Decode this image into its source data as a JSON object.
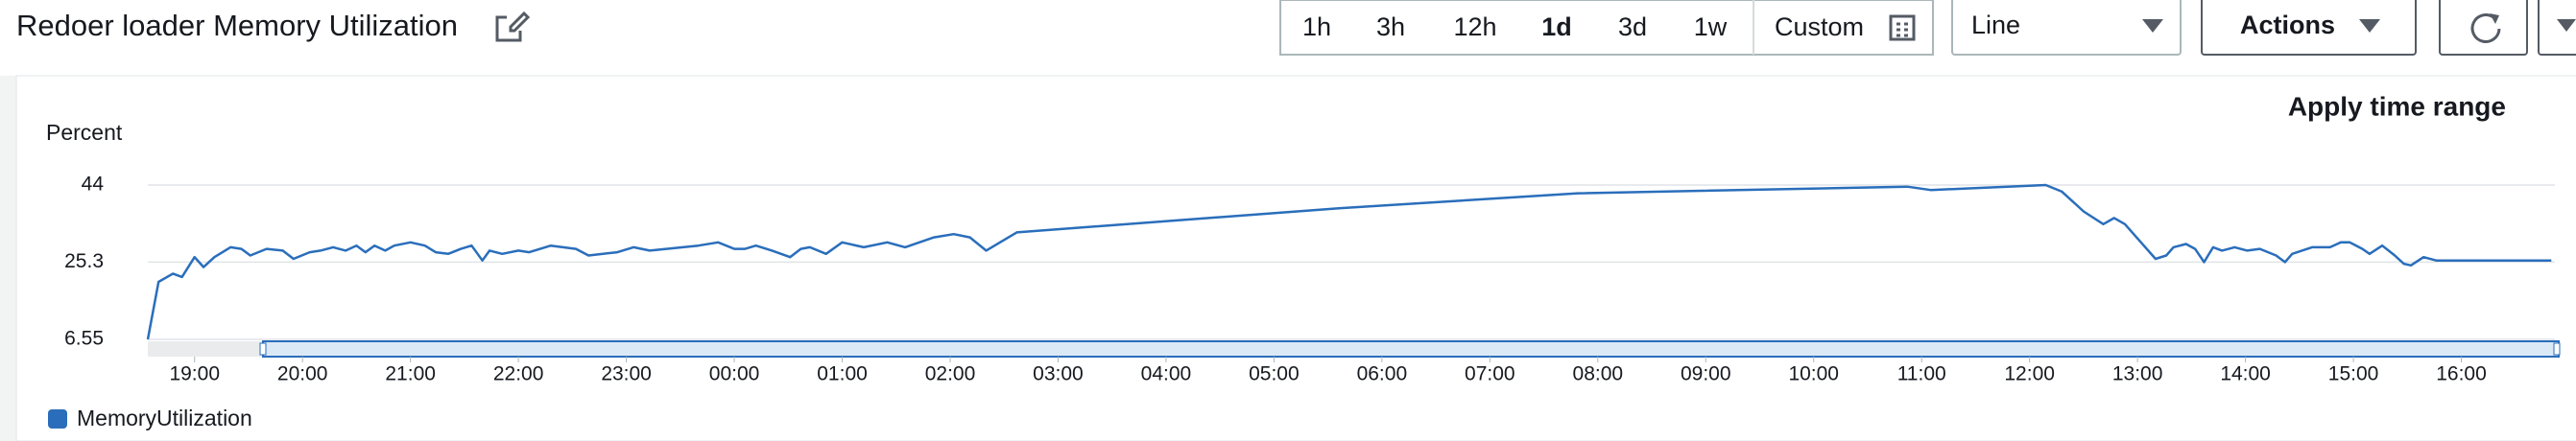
{
  "header": {
    "title": "Redoer loader Memory Utilization"
  },
  "toolbar": {
    "ranges": [
      "1h",
      "3h",
      "12h",
      "1d",
      "3d",
      "1w"
    ],
    "selected": 3,
    "custom": "Custom",
    "view": "Line",
    "actions": "Actions"
  },
  "apply_time_range": "Apply time range",
  "chart_data": {
    "type": "line",
    "y_label": "Percent",
    "x": [
      "18:34",
      "18:40",
      "18:48",
      "18:53",
      "19:00",
      "19:05",
      "19:11",
      "19:20",
      "19:26",
      "19:31",
      "19:40",
      "19:49",
      "19:55",
      "20:04",
      "20:10",
      "20:17",
      "20:24",
      "20:30",
      "20:35",
      "20:40",
      "20:46",
      "20:51",
      "21:00",
      "21:08",
      "21:14",
      "21:21",
      "21:28",
      "21:34",
      "21:40",
      "21:44",
      "21:51",
      "22:00",
      "22:06",
      "22:18",
      "22:32",
      "22:39",
      "22:55",
      "23:04",
      "23:13",
      "23:40",
      "23:51",
      "00:00",
      "00:06",
      "00:12",
      "00:21",
      "00:31",
      "00:37",
      "00:42",
      "00:51",
      "01:00",
      "01:12",
      "01:25",
      "01:35",
      "01:51",
      "02:02",
      "02:11",
      "02:20",
      "02:37",
      "05:37",
      "07:49",
      "10:52",
      "11:05",
      "12:09",
      "12:18",
      "12:30",
      "12:41",
      "12:47",
      "12:53",
      "13:10",
      "13:16",
      "13:20",
      "13:27",
      "13:32",
      "13:37",
      "13:42",
      "13:47",
      "13:54",
      "14:01",
      "14:08",
      "14:17",
      "14:22",
      "14:26",
      "14:37",
      "14:47",
      "14:53",
      "14:58",
      "15:05",
      "15:09",
      "15:16",
      "15:23",
      "15:28",
      "15:32",
      "15:39",
      "15:46",
      "16:50"
    ],
    "series": [
      {
        "name": "MemoryUtilization",
        "color": "#2a6ebb",
        "values": [
          6.55,
          20.5,
          22.5,
          21.7,
          26.5,
          24.1,
          26.5,
          28.9,
          28.5,
          26.9,
          28.5,
          28.1,
          26.1,
          27.7,
          28.1,
          28.9,
          28.1,
          29.3,
          27.7,
          29.3,
          28.1,
          29.3,
          30.1,
          29.3,
          27.7,
          27.3,
          28.5,
          29.3,
          25.7,
          28.1,
          27.3,
          28.1,
          27.7,
          29.3,
          28.5,
          26.9,
          27.7,
          28.9,
          28.1,
          29.3,
          30.1,
          28.5,
          28.5,
          29.3,
          28.1,
          26.5,
          28.5,
          28.9,
          27.3,
          30.1,
          28.9,
          30.1,
          28.9,
          31.3,
          32.1,
          31.3,
          28.1,
          32.5,
          38.4,
          42.0,
          43.6,
          42.8,
          44.0,
          42.4,
          37.6,
          34.5,
          36.0,
          34.5,
          26.1,
          26.9,
          28.9,
          29.7,
          28.5,
          25.3,
          28.9,
          28.1,
          28.9,
          28.1,
          28.5,
          26.9,
          25.3,
          27.3,
          28.9,
          28.9,
          30.1,
          30.1,
          28.5,
          27.3,
          29.3,
          26.9,
          24.9,
          24.5,
          26.5,
          25.7,
          25.7
        ]
      }
    ],
    "xlim": [
      "18:34",
      "16:52"
    ],
    "xticks": [
      "19:00",
      "20:00",
      "21:00",
      "22:00",
      "23:00",
      "00:00",
      "01:00",
      "02:00",
      "03:00",
      "04:00",
      "05:00",
      "06:00",
      "07:00",
      "08:00",
      "09:00",
      "10:00",
      "11:00",
      "12:00",
      "13:00",
      "14:00",
      "15:00",
      "16:00"
    ],
    "ylim": [
      6.55,
      44
    ],
    "yticks": [
      6.55,
      25.3,
      44
    ],
    "grid": true
  }
}
